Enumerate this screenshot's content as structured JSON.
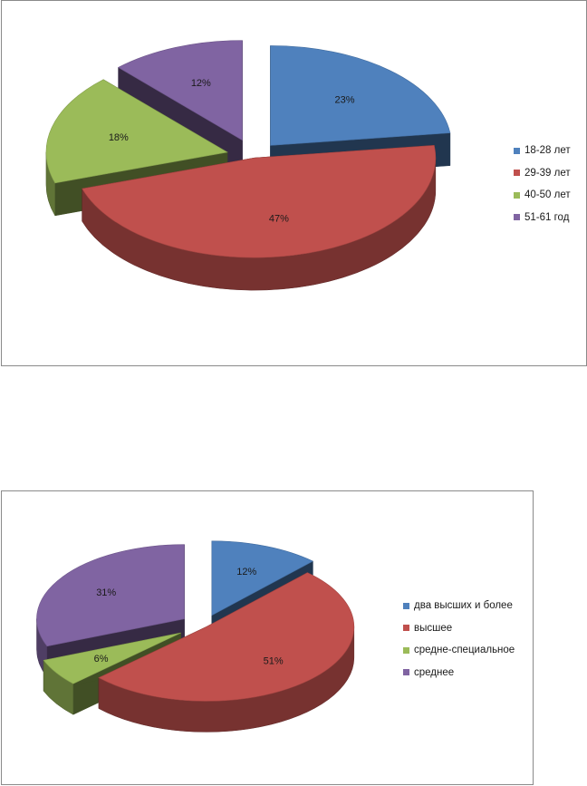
{
  "chart_data": [
    {
      "type": "pie",
      "style": "3d-exploded",
      "title": "",
      "categories": [
        "18-28 лет",
        "29-39 лет",
        "40-50 лет",
        "51-61 год"
      ],
      "values": [
        23,
        47,
        18,
        12
      ],
      "labels": [
        "23%",
        "47%",
        "18%",
        "12%"
      ],
      "colors": [
        "#4f81bd",
        "#c0504d",
        "#9bbb59",
        "#8064a2"
      ],
      "legend_position": "right"
    },
    {
      "type": "pie",
      "style": "3d-exploded",
      "title": "",
      "categories": [
        "два высших и более",
        "высшее",
        "средне-специальное",
        "среднее"
      ],
      "values": [
        12,
        51,
        6,
        31
      ],
      "labels": [
        "12%",
        "51%",
        "6%",
        "31%"
      ],
      "colors": [
        "#4f81bd",
        "#c0504d",
        "#9bbb59",
        "#8064a2"
      ],
      "legend_position": "right"
    }
  ]
}
